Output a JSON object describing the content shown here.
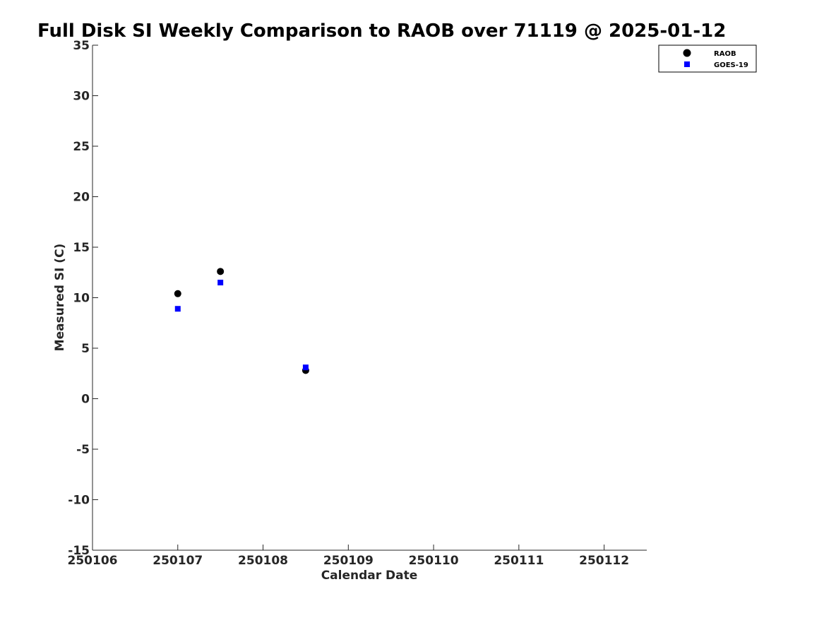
{
  "chart_data": {
    "type": "scatter",
    "title": "Full Disk SI Weekly Comparison to RAOB over 71119 @ 2025-01-12",
    "xlabel": "Calendar Date",
    "ylabel": "Measured SI (C)",
    "xlim": [
      "250106",
      "250112.5"
    ],
    "ylim": [
      -15,
      35
    ],
    "x_ticks": [
      "250106",
      "250107",
      "250108",
      "250109",
      "250110",
      "250111",
      "250112"
    ],
    "y_ticks": [
      35,
      30,
      25,
      20,
      15,
      10,
      5,
      0,
      -5,
      -10,
      -15
    ],
    "grid": false,
    "legend_position": "top-right",
    "series": [
      {
        "name": "RAOB",
        "marker": "circle",
        "color": "#000000",
        "x": [
          250107.0,
          250107.5,
          250108.5
        ],
        "y": [
          10.4,
          12.6,
          2.8
        ]
      },
      {
        "name": "GOES-19",
        "marker": "square",
        "color": "#0000ff",
        "x": [
          250107.0,
          250107.5,
          250108.5
        ],
        "y": [
          8.9,
          11.5,
          3.1
        ]
      }
    ]
  }
}
